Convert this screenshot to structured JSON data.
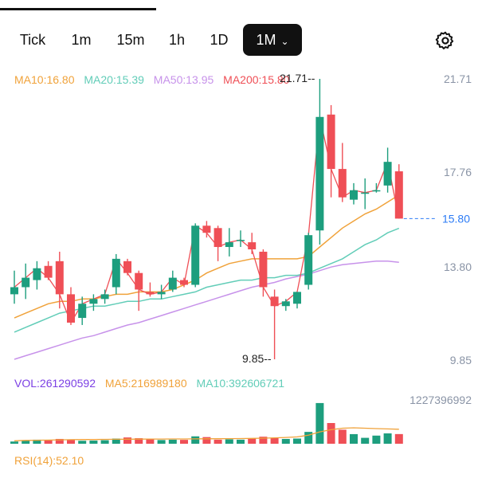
{
  "tabs": [
    {
      "label": "Tick",
      "active": false
    },
    {
      "label": "1m",
      "active": false
    },
    {
      "label": "15m",
      "active": false
    },
    {
      "label": "1h",
      "active": false
    },
    {
      "label": "1D",
      "active": false
    },
    {
      "label": "1M",
      "active": true
    }
  ],
  "ma": {
    "ma10": "MA10:16.80",
    "ma20": "MA20:15.39",
    "ma50": "MA50:13.95",
    "ma200": "MA200:15.80"
  },
  "price_axis": [
    "21.71",
    "17.76",
    "13.80",
    "9.85"
  ],
  "current_price": "15.80",
  "high_label": "21.71",
  "low_label": "9.85",
  "volume": {
    "vol": "VOL:261290592",
    "ma5": "MA5:216989180",
    "ma10": "MA10:392606721",
    "max_label": "1227396992"
  },
  "rsi": "RSI(14):52.10",
  "colors": {
    "up": "#1d9e7e",
    "down": "#ef4f56",
    "ma10": "#f0a23a",
    "ma20": "#62cdb8",
    "ma50": "#c792ea",
    "ma200": "#ef4f56",
    "vol": "#7b3fe4",
    "axis": "#8a94a6",
    "current": "#2d7cf6"
  },
  "chart_data": {
    "type": "candlestick",
    "y_range": [
      9.85,
      21.71
    ],
    "candles": [
      {
        "o": 12.6,
        "h": 13.6,
        "l": 12.2,
        "c": 12.9
      },
      {
        "o": 12.9,
        "h": 13.9,
        "l": 12.4,
        "c": 13.3
      },
      {
        "o": 13.2,
        "h": 14.0,
        "l": 12.8,
        "c": 13.7
      },
      {
        "o": 13.8,
        "h": 14.0,
        "l": 13.2,
        "c": 13.3
      },
      {
        "o": 14.0,
        "h": 14.4,
        "l": 12.0,
        "c": 12.6
      },
      {
        "o": 12.6,
        "h": 12.9,
        "l": 11.3,
        "c": 11.4
      },
      {
        "o": 11.6,
        "h": 12.5,
        "l": 11.3,
        "c": 12.2
      },
      {
        "o": 12.2,
        "h": 12.6,
        "l": 11.9,
        "c": 12.4
      },
      {
        "o": 12.4,
        "h": 12.8,
        "l": 12.2,
        "c": 12.6
      },
      {
        "o": 12.9,
        "h": 14.3,
        "l": 12.6,
        "c": 14.1
      },
      {
        "o": 14.0,
        "h": 14.1,
        "l": 13.4,
        "c": 13.5
      },
      {
        "o": 13.5,
        "h": 13.6,
        "l": 11.9,
        "c": 12.8
      },
      {
        "o": 12.7,
        "h": 13.1,
        "l": 12.5,
        "c": 12.6
      },
      {
        "o": 12.6,
        "h": 13.0,
        "l": 12.4,
        "c": 12.7
      },
      {
        "o": 12.8,
        "h": 13.6,
        "l": 12.7,
        "c": 13.3
      },
      {
        "o": 13.2,
        "h": 13.3,
        "l": 12.9,
        "c": 13.0
      },
      {
        "o": 13.0,
        "h": 15.6,
        "l": 12.9,
        "c": 15.5
      },
      {
        "o": 15.5,
        "h": 15.7,
        "l": 15.0,
        "c": 15.2
      },
      {
        "o": 15.4,
        "h": 15.5,
        "l": 14.0,
        "c": 14.6
      },
      {
        "o": 14.6,
        "h": 15.4,
        "l": 14.2,
        "c": 14.8
      },
      {
        "o": 14.9,
        "h": 15.3,
        "l": 14.6,
        "c": 14.9
      },
      {
        "o": 14.8,
        "h": 15.2,
        "l": 14.3,
        "c": 14.5
      },
      {
        "o": 14.4,
        "h": 14.5,
        "l": 12.5,
        "c": 12.9
      },
      {
        "o": 12.5,
        "h": 12.8,
        "l": 9.85,
        "c": 12.1
      },
      {
        "o": 12.1,
        "h": 12.4,
        "l": 11.9,
        "c": 12.3
      },
      {
        "o": 12.2,
        "h": 12.7,
        "l": 12.0,
        "c": 12.7
      },
      {
        "o": 13.0,
        "h": 15.2,
        "l": 12.8,
        "c": 15.1
      },
      {
        "o": 15.3,
        "h": 21.71,
        "l": 14.7,
        "c": 20.1
      },
      {
        "o": 20.2,
        "h": 20.6,
        "l": 16.7,
        "c": 17.9
      },
      {
        "o": 17.9,
        "h": 19.0,
        "l": 16.5,
        "c": 16.7
      },
      {
        "o": 16.6,
        "h": 17.3,
        "l": 16.4,
        "c": 17.0
      },
      {
        "o": 16.9,
        "h": 17.5,
        "l": 16.2,
        "c": 16.9
      },
      {
        "o": 17.0,
        "h": 17.3,
        "l": 16.9,
        "c": 17.0
      },
      {
        "o": 17.2,
        "h": 18.8,
        "l": 16.9,
        "c": 18.2
      },
      {
        "o": 17.8,
        "h": 18.1,
        "l": 15.8,
        "c": 15.8
      }
    ],
    "ma10": [
      11.6,
      11.8,
      12.0,
      12.2,
      12.3,
      12.3,
      12.4,
      12.4,
      12.5,
      12.6,
      12.6,
      12.7,
      12.7,
      12.7,
      12.8,
      13.0,
      13.2,
      13.5,
      13.7,
      13.9,
      14.0,
      14.1,
      14.1,
      14.1,
      14.1,
      14.1,
      14.2,
      14.6,
      15.0,
      15.4,
      15.7,
      16.0,
      16.2,
      16.5,
      16.8
    ],
    "ma20": [
      11.0,
      11.2,
      11.4,
      11.6,
      11.8,
      11.9,
      12.0,
      12.1,
      12.1,
      12.2,
      12.3,
      12.3,
      12.4,
      12.4,
      12.5,
      12.6,
      12.7,
      12.9,
      13.0,
      13.1,
      13.2,
      13.2,
      13.3,
      13.3,
      13.4,
      13.4,
      13.5,
      13.7,
      13.9,
      14.1,
      14.4,
      14.7,
      14.9,
      15.2,
      15.39
    ],
    "ma50": [
      9.85,
      10.0,
      10.15,
      10.3,
      10.45,
      10.6,
      10.75,
      10.85,
      11.0,
      11.15,
      11.3,
      11.4,
      11.55,
      11.7,
      11.85,
      12.0,
      12.15,
      12.3,
      12.45,
      12.6,
      12.75,
      12.9,
      13.0,
      13.1,
      13.25,
      13.35,
      13.45,
      13.6,
      13.75,
      13.85,
      13.9,
      13.95,
      14.0,
      14.0,
      13.95
    ],
    "volume_max": 1227396992,
    "volume": [
      60000000,
      90000000,
      110000000,
      95000000,
      130000000,
      100000000,
      80000000,
      85000000,
      95000000,
      140000000,
      170000000,
      150000000,
      130000000,
      100000000,
      110000000,
      105000000,
      200000000,
      180000000,
      110000000,
      120000000,
      110000000,
      140000000,
      190000000,
      160000000,
      130000000,
      140000000,
      320000000,
      1100000000,
      560000000,
      380000000,
      260000000,
      160000000,
      220000000,
      280000000,
      261290592
    ],
    "vol_ma10": [
      80000000,
      90000000,
      95000000,
      100000000,
      105000000,
      110000000,
      115000000,
      115000000,
      118000000,
      120000000,
      122000000,
      124000000,
      126000000,
      128000000,
      130000000,
      130000000,
      132000000,
      134000000,
      136000000,
      138000000,
      140000000,
      145000000,
      150000000,
      160000000,
      170000000,
      185000000,
      230000000,
      320000000,
      380000000,
      420000000,
      430000000,
      420000000,
      410000000,
      400000000,
      392606721
    ]
  }
}
